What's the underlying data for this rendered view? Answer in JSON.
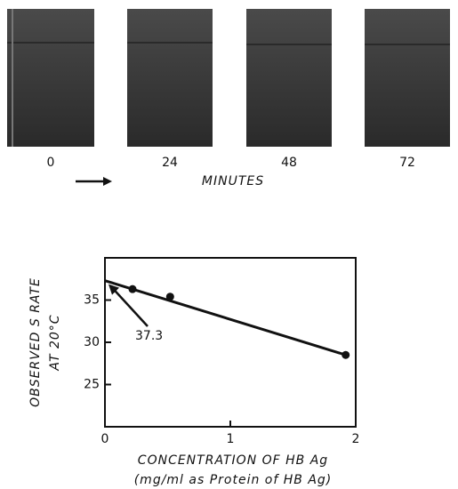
{
  "photo_panel": {
    "time_labels": [
      0,
      24,
      48,
      72
    ],
    "axis_label": "MINUTES"
  },
  "chart_data": {
    "type": "scatter",
    "y_label": [
      "OBSERVED S RATE",
      "AT 20°C"
    ],
    "x_label": [
      "CONCENTRATION OF HB Ag",
      "(mg/ml as Protein of HB Ag)"
    ],
    "points": {
      "x": [
        0.22,
        0.52,
        1.92
      ],
      "values": [
        36.3,
        35.4,
        28.5
      ]
    },
    "fit_line": {
      "x": [
        0,
        1.92
      ],
      "values": [
        37.3,
        28.5
      ]
    },
    "annotation": "37.3",
    "color": "#111111",
    "xlim": [
      0,
      2
    ],
    "xticks": [
      0,
      1,
      2
    ],
    "ylim": [
      20,
      40
    ],
    "yticks": [
      25,
      30,
      35
    ]
  }
}
